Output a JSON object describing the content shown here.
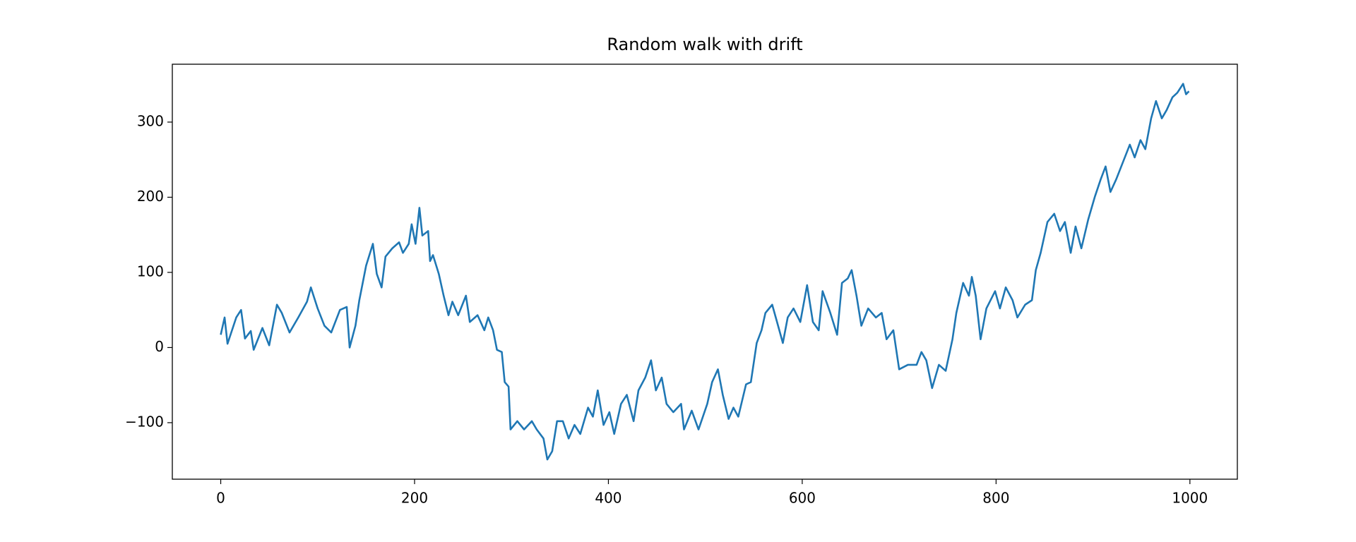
{
  "chart_data": {
    "type": "line",
    "title": "Random walk with drift",
    "x": [
      0,
      4,
      7,
      16,
      21,
      25,
      31,
      34,
      43,
      50,
      58,
      63,
      71,
      80,
      89,
      93,
      100,
      107,
      114,
      123,
      130,
      133,
      139,
      143,
      150,
      157,
      161,
      166,
      170,
      177,
      184,
      188,
      194,
      197,
      201,
      205,
      208,
      214,
      216,
      219,
      225,
      230,
      235,
      239,
      245,
      253,
      257,
      265,
      272,
      276,
      281,
      285,
      290,
      293,
      297,
      299,
      306,
      313,
      321,
      326,
      333,
      337,
      342,
      347,
      353,
      359,
      365,
      371,
      379,
      384,
      389,
      395,
      401,
      406,
      413,
      419,
      426,
      431,
      438,
      444,
      449,
      455,
      460,
      467,
      475,
      478,
      486,
      493,
      502,
      507,
      513,
      518,
      524,
      529,
      534,
      542,
      547,
      553,
      558,
      562,
      569,
      574,
      580,
      585,
      591,
      598,
      605,
      611,
      617,
      621,
      629,
      636,
      641,
      647,
      651,
      656,
      661,
      668,
      676,
      682,
      687,
      694,
      700,
      709,
      718,
      723,
      728,
      734,
      741,
      748,
      755,
      759,
      766,
      772,
      775,
      779,
      784,
      790,
      799,
      804,
      810,
      817,
      822,
      830,
      837,
      841,
      846,
      853,
      860,
      866,
      871,
      877,
      882,
      888,
      895,
      902,
      908,
      913,
      918,
      924,
      931,
      938,
      943,
      949,
      954,
      960,
      965,
      971,
      976,
      982,
      987,
      993,
      996,
      999
    ],
    "series": [
      {
        "color": "#1f77b4",
        "values": [
          17,
          40,
          5,
          40,
          50,
          12,
          22,
          -3,
          26,
          3,
          57,
          46,
          20,
          40,
          61,
          80,
          52,
          29,
          20,
          50,
          54,
          0,
          29,
          63,
          109,
          138,
          98,
          80,
          121,
          132,
          140,
          126,
          138,
          164,
          138,
          186,
          149,
          155,
          115,
          123,
          98,
          69,
          43,
          61,
          43,
          69,
          34,
          43,
          23,
          40,
          23,
          -3,
          -6,
          -46,
          -52,
          -109,
          -98,
          -109,
          -98,
          -109,
          -121,
          -149,
          -138,
          -98,
          -98,
          -121,
          -103,
          -115,
          -80,
          -92,
          -57,
          -103,
          -86,
          -115,
          -75,
          -63,
          -98,
          -57,
          -40,
          -17,
          -57,
          -40,
          -75,
          -86,
          -75,
          -109,
          -84,
          -109,
          -75,
          -46,
          -29,
          -63,
          -95,
          -80,
          -92,
          -49,
          -46,
          6,
          23,
          46,
          57,
          34,
          6,
          40,
          52,
          34,
          83,
          34,
          23,
          75,
          46,
          17,
          86,
          92,
          103,
          69,
          29,
          52,
          40,
          46,
          11,
          23,
          -29,
          -23,
          -23,
          -6,
          -17,
          -54,
          -23,
          -31,
          11,
          46,
          86,
          69,
          94,
          69,
          11,
          52,
          75,
          52,
          80,
          63,
          40,
          57,
          63,
          103,
          126,
          167,
          178,
          155,
          167,
          126,
          161,
          132,
          170,
          201,
          224,
          241,
          207,
          224,
          247,
          270,
          253,
          276,
          264,
          305,
          328,
          305,
          316,
          333,
          339,
          351,
          337,
          341
        ]
      }
    ],
    "xlim": [
      -49.95,
      1048.95
    ],
    "ylim": [
      -175.2,
      377
    ],
    "xticks": [
      0,
      200,
      400,
      600,
      800,
      1000
    ],
    "yticks": [
      {
        "value": -100,
        "label": "−100"
      },
      0,
      100,
      200,
      300
    ]
  }
}
